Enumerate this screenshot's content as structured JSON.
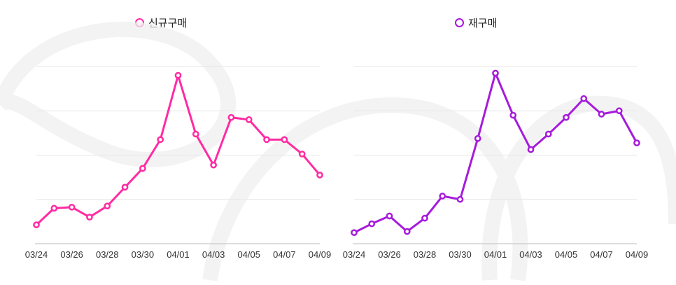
{
  "chart_data": [
    {
      "type": "line",
      "name": "신규구매",
      "color": "#FF2BA3",
      "x_tick_labels": [
        "03/24",
        "03/26",
        "03/28",
        "03/30",
        "04/01",
        "04/03",
        "04/05",
        "04/07",
        "04/09"
      ],
      "x": [
        "03/24",
        "03/25",
        "03/26",
        "03/27",
        "03/28",
        "03/29",
        "03/30",
        "03/31",
        "04/01",
        "04/02",
        "04/03",
        "04/04",
        "04/05",
        "04/06",
        "04/07",
        "04/08",
        "04/09"
      ],
      "series": [
        {
          "name": "신규구매",
          "values": [
            17,
            32,
            33,
            24,
            34,
            51,
            68,
            94,
            152,
            99,
            71,
            114,
            112,
            94,
            94,
            81,
            62
          ]
        }
      ],
      "ylim": [
        0,
        160
      ],
      "grid": true,
      "legend": "top-center"
    },
    {
      "type": "line",
      "name": "재구매",
      "color": "#A61BDB",
      "x_tick_labels": [
        "03/24",
        "03/26",
        "03/28",
        "03/30",
        "04/01",
        "04/03",
        "04/05",
        "04/07",
        "04/09"
      ],
      "x": [
        "03/24",
        "03/25",
        "03/26",
        "03/27",
        "03/28",
        "03/29",
        "03/30",
        "03/31",
        "04/01",
        "04/02",
        "04/03",
        "04/04",
        "04/05",
        "04/06",
        "04/07",
        "04/08",
        "04/09"
      ],
      "series": [
        {
          "name": "재구매",
          "values": [
            10,
            18,
            25,
            11,
            23,
            43,
            40,
            95,
            154,
            116,
            85,
            99,
            114,
            131,
            117,
            120,
            91
          ]
        }
      ],
      "ylim": [
        0,
        160
      ],
      "grid": true,
      "legend": "top-center"
    }
  ]
}
